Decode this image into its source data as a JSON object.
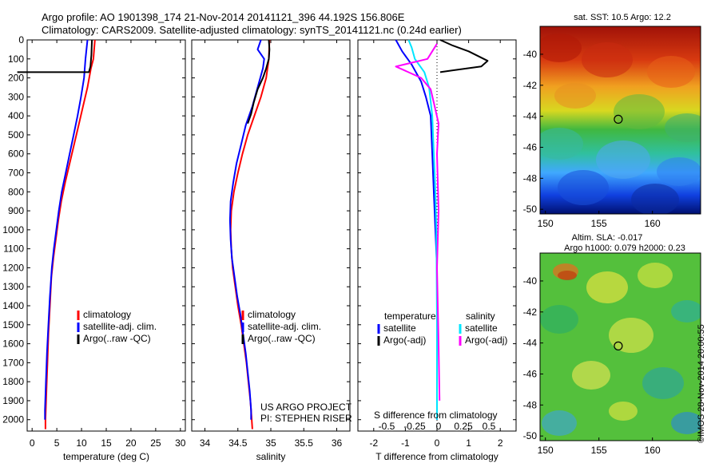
{
  "header": {
    "line1": "Argo profile: AO 1901398_174 21-Nov-2014 20141121_396 44.192S 156.806E",
    "line2": "Climatology: CARS2009. Satellite-adjusted climatology: synTS_20141121.nc (0.24d earlier)"
  },
  "stamp": "©IMOS 28-Nov-2014 20:00:55",
  "colors": {
    "climatology": "#ff0000",
    "satellite": "#0000ff",
    "argo": "#000000",
    "sat_salinity": "#00e5ff",
    "argo_salinity": "#ff00ff"
  },
  "chart_data": [
    {
      "type": "line",
      "name": "temperature",
      "xlabel": "temperature (deg C)",
      "ylabel": "",
      "xlim": [
        -1,
        31
      ],
      "ylim": [
        2060,
        0
      ],
      "xticks": [
        0,
        5,
        10,
        15,
        20,
        25,
        30
      ],
      "yticks": [
        0,
        100,
        200,
        300,
        400,
        500,
        600,
        700,
        800,
        900,
        1000,
        1100,
        1200,
        1300,
        1400,
        1500,
        1600,
        1700,
        1800,
        1900,
        2000
      ],
      "legend": [
        "climatology",
        "satellite-adj. clim.",
        "Argo(..raw -QC)"
      ],
      "series": [
        {
          "name": "climatology",
          "points": [
            [
              12.7,
              0
            ],
            [
              12.4,
              100
            ],
            [
              11.9,
              150
            ],
            [
              11.2,
              250
            ],
            [
              10.3,
              350
            ],
            [
              9.4,
              450
            ],
            [
              8.5,
              550
            ],
            [
              7.6,
              650
            ],
            [
              6.7,
              750
            ],
            [
              5.9,
              850
            ],
            [
              5.3,
              950
            ],
            [
              4.8,
              1050
            ],
            [
              4.3,
              1150
            ],
            [
              3.9,
              1250
            ],
            [
              3.6,
              1400
            ],
            [
              3.3,
              1550
            ],
            [
              3.1,
              1700
            ],
            [
              2.9,
              1850
            ],
            [
              2.7,
              2000
            ],
            [
              2.7,
              2050
            ]
          ]
        },
        {
          "name": "satellite-adj. clim.",
          "points": [
            [
              11.2,
              0
            ],
            [
              10.8,
              100
            ],
            [
              10.5,
              200
            ],
            [
              9.9,
              300
            ],
            [
              9.2,
              400
            ],
            [
              8.4,
              500
            ],
            [
              7.6,
              600
            ],
            [
              6.8,
              700
            ],
            [
              6.0,
              800
            ],
            [
              5.4,
              900
            ],
            [
              4.9,
              1000
            ],
            [
              4.4,
              1100
            ],
            [
              4.0,
              1200
            ],
            [
              3.6,
              1350
            ],
            [
              3.3,
              1500
            ],
            [
              3.0,
              1650
            ],
            [
              2.8,
              1800
            ],
            [
              2.6,
              1950
            ],
            [
              2.6,
              2000
            ]
          ]
        },
        {
          "name": "Argo(..raw -QC)",
          "points": [
            [
              12.1,
              0
            ],
            [
              12.0,
              80
            ],
            [
              11.8,
              140
            ],
            [
              11.5,
              170
            ],
            [
              -3,
              170
            ]
          ]
        }
      ]
    },
    {
      "type": "line",
      "name": "salinity",
      "xlabel": "salinity",
      "xlim": [
        33.8,
        36.2
      ],
      "ylim": [
        2060,
        0
      ],
      "xticks": [
        34,
        34.5,
        35,
        35.5,
        36
      ],
      "legend": [
        "climatology",
        "satellite-adj. clim.",
        "Argo(..raw -QC)"
      ],
      "annotation_lines": [
        "US ARGO PROJECT",
        "PI: STEPHEN RISER"
      ],
      "series": [
        {
          "name": "climatology",
          "points": [
            [
              34.98,
              0
            ],
            [
              34.97,
              100
            ],
            [
              34.93,
              200
            ],
            [
              34.85,
              300
            ],
            [
              34.75,
              400
            ],
            [
              34.65,
              500
            ],
            [
              34.57,
              600
            ],
            [
              34.5,
              700
            ],
            [
              34.44,
              800
            ],
            [
              34.4,
              900
            ],
            [
              34.39,
              1000
            ],
            [
              34.4,
              1100
            ],
            [
              34.42,
              1200
            ],
            [
              34.46,
              1300
            ],
            [
              34.5,
              1400
            ],
            [
              34.55,
              1500
            ],
            [
              34.59,
              1600
            ],
            [
              34.63,
              1700
            ],
            [
              34.66,
              1800
            ],
            [
              34.69,
              1900
            ],
            [
              34.71,
              2000
            ],
            [
              34.72,
              2050
            ]
          ]
        },
        {
          "name": "satellite-adj. clim.",
          "points": [
            [
              34.85,
              0
            ],
            [
              34.8,
              50
            ],
            [
              34.9,
              100
            ],
            [
              34.88,
              150
            ],
            [
              34.8,
              250
            ],
            [
              34.72,
              350
            ],
            [
              34.62,
              450
            ],
            [
              34.55,
              550
            ],
            [
              34.48,
              650
            ],
            [
              34.43,
              750
            ],
            [
              34.39,
              850
            ],
            [
              34.38,
              950
            ],
            [
              34.39,
              1050
            ],
            [
              34.41,
              1150
            ],
            [
              34.45,
              1250
            ],
            [
              34.49,
              1350
            ],
            [
              34.54,
              1450
            ],
            [
              34.58,
              1550
            ],
            [
              34.62,
              1650
            ],
            [
              34.65,
              1750
            ],
            [
              34.68,
              1850
            ],
            [
              34.7,
              1950
            ],
            [
              34.7,
              2000
            ]
          ]
        },
        {
          "name": "Argo(..raw -QC)",
          "points": [
            [
              34.97,
              0
            ],
            [
              34.98,
              50
            ],
            [
              34.97,
              100
            ],
            [
              34.93,
              150
            ],
            [
              34.88,
              200
            ],
            [
              34.8,
              260
            ],
            [
              34.74,
              330
            ],
            [
              34.7,
              390
            ],
            [
              34.65,
              440
            ]
          ]
        }
      ]
    },
    {
      "type": "line",
      "name": "difference",
      "xlabel": "T difference from climatology",
      "xlabel_top": "S difference from climatology",
      "xlim": [
        -2.5,
        2.5
      ],
      "ylim": [
        2060,
        0
      ],
      "xticks": [
        -2,
        -1,
        0,
        1,
        2
      ],
      "s_ticks": [
        "-0.5",
        "-0.25",
        "0",
        "0.25",
        "0.5"
      ],
      "legend_temperature_title": "temperature",
      "legend_salinity_title": "salinity",
      "legend_temperature": [
        "satellite",
        "Argo(-adj)"
      ],
      "legend_salinity": [
        "satellite",
        "Argo(-adj)"
      ],
      "series": [
        {
          "name": "temperature satellite",
          "points": [
            [
              -1.3,
              0
            ],
            [
              -1.1,
              60
            ],
            [
              -0.8,
              130
            ],
            [
              -0.5,
              220
            ],
            [
              -0.35,
              300
            ],
            [
              -0.2,
              400
            ],
            [
              -0.15,
              600
            ],
            [
              -0.1,
              800
            ],
            [
              -0.05,
              1000
            ],
            [
              0,
              1200
            ],
            [
              0,
              2000
            ]
          ]
        },
        {
          "name": "temperature Argo(-adj)",
          "points": [
            [
              0.1,
              0
            ],
            [
              0.5,
              30
            ],
            [
              1.0,
              60
            ],
            [
              1.6,
              110
            ],
            [
              1.4,
              140
            ],
            [
              0.5,
              160
            ],
            [
              0.1,
              170
            ]
          ]
        },
        {
          "name": "salinity satellite",
          "points": [
            [
              -0.9,
              0
            ],
            [
              -0.8,
              40
            ],
            [
              -0.7,
              100
            ],
            [
              -0.4,
              170
            ],
            [
              -0.25,
              250
            ],
            [
              -0.15,
              400
            ],
            [
              -0.1,
              600
            ],
            [
              -0.05,
              800
            ],
            [
              -0.02,
              1000
            ],
            [
              0,
              1500
            ],
            [
              0,
              2000
            ]
          ]
        },
        {
          "name": "salinity Argo(-adj)",
          "points": [
            [
              0.0,
              20
            ],
            [
              -0.3,
              100
            ],
            [
              -1.3,
              140
            ],
            [
              -0.5,
              200
            ],
            [
              -0.2,
              260
            ],
            [
              -0.1,
              330
            ],
            [
              0.05,
              440
            ],
            [
              0.0,
              600
            ],
            [
              0.05,
              900
            ],
            [
              0.0,
              1200
            ],
            [
              0.05,
              1600
            ],
            [
              0.08,
              1900
            ]
          ]
        }
      ]
    },
    {
      "type": "heatmap",
      "name": "sst-map",
      "title": "sat. SST: 10.5 Argo: 12.2",
      "xticks": [
        150,
        155,
        160
      ],
      "yticks": [
        -40,
        -42,
        -44,
        -46,
        -48,
        -50
      ],
      "xlim": [
        149.5,
        164.5
      ],
      "ylim": [
        -50.3,
        -38.2
      ],
      "marker": [
        156.806,
        -44.192
      ]
    },
    {
      "type": "heatmap",
      "name": "sla-map",
      "title_line1": "Altim. SLA: -0.017",
      "title_line2": "Argo h1000: 0.079 h2000: 0.23",
      "xticks": [
        150,
        155,
        160
      ],
      "yticks": [
        -40,
        -42,
        -44,
        -46,
        -48,
        -50
      ],
      "xlim": [
        149.5,
        164.5
      ],
      "ylim": [
        -50.3,
        -38.2
      ],
      "marker": [
        156.806,
        -44.192
      ]
    }
  ]
}
